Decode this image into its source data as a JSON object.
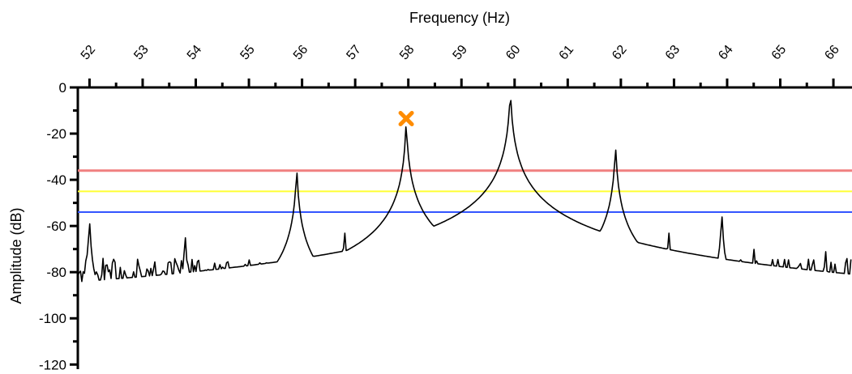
{
  "chart_data": {
    "type": "line",
    "xlabel": "Frequency (Hz)",
    "ylabel": "Amplitude (dB)",
    "xlim": [
      51.78,
      66.35
    ],
    "ylim": [
      -122,
      0
    ],
    "x_axis_position": "top",
    "x_ticks": [
      "52",
      "53",
      "54",
      "55",
      "56",
      "57",
      "58",
      "59",
      "60",
      "61",
      "62",
      "63",
      "64",
      "65",
      "66"
    ],
    "y_ticks": [
      "0",
      "-20",
      "-40",
      "-60",
      "-80",
      "-100",
      "-120"
    ],
    "grid": false,
    "thresholds": [
      {
        "value": -36,
        "color": "#f08080"
      },
      {
        "value": -45,
        "color": "#ffff33"
      },
      {
        "value": -54,
        "color": "#3355ff"
      }
    ],
    "marker": {
      "x": 57.96,
      "y": -13.5,
      "symbol": "x",
      "color": "#ff8c00"
    },
    "spectrum_color": "#000000",
    "peaks": [
      {
        "x": 52.0,
        "y": -56
      },
      {
        "x": 53.8,
        "y": -62
      },
      {
        "x": 55.9,
        "y": -34
      },
      {
        "x": 56.8,
        "y": -60
      },
      {
        "x": 57.96,
        "y": -14
      },
      {
        "x": 59.4,
        "y": -60
      },
      {
        "x": 59.92,
        "y": 0
      },
      {
        "x": 60.4,
        "y": -52
      },
      {
        "x": 61.9,
        "y": -24
      },
      {
        "x": 62.9,
        "y": -60
      },
      {
        "x": 63.9,
        "y": -53
      },
      {
        "x": 64.5,
        "y": -67
      },
      {
        "x": 65.85,
        "y": -68
      }
    ],
    "noise_floor": -82
  }
}
